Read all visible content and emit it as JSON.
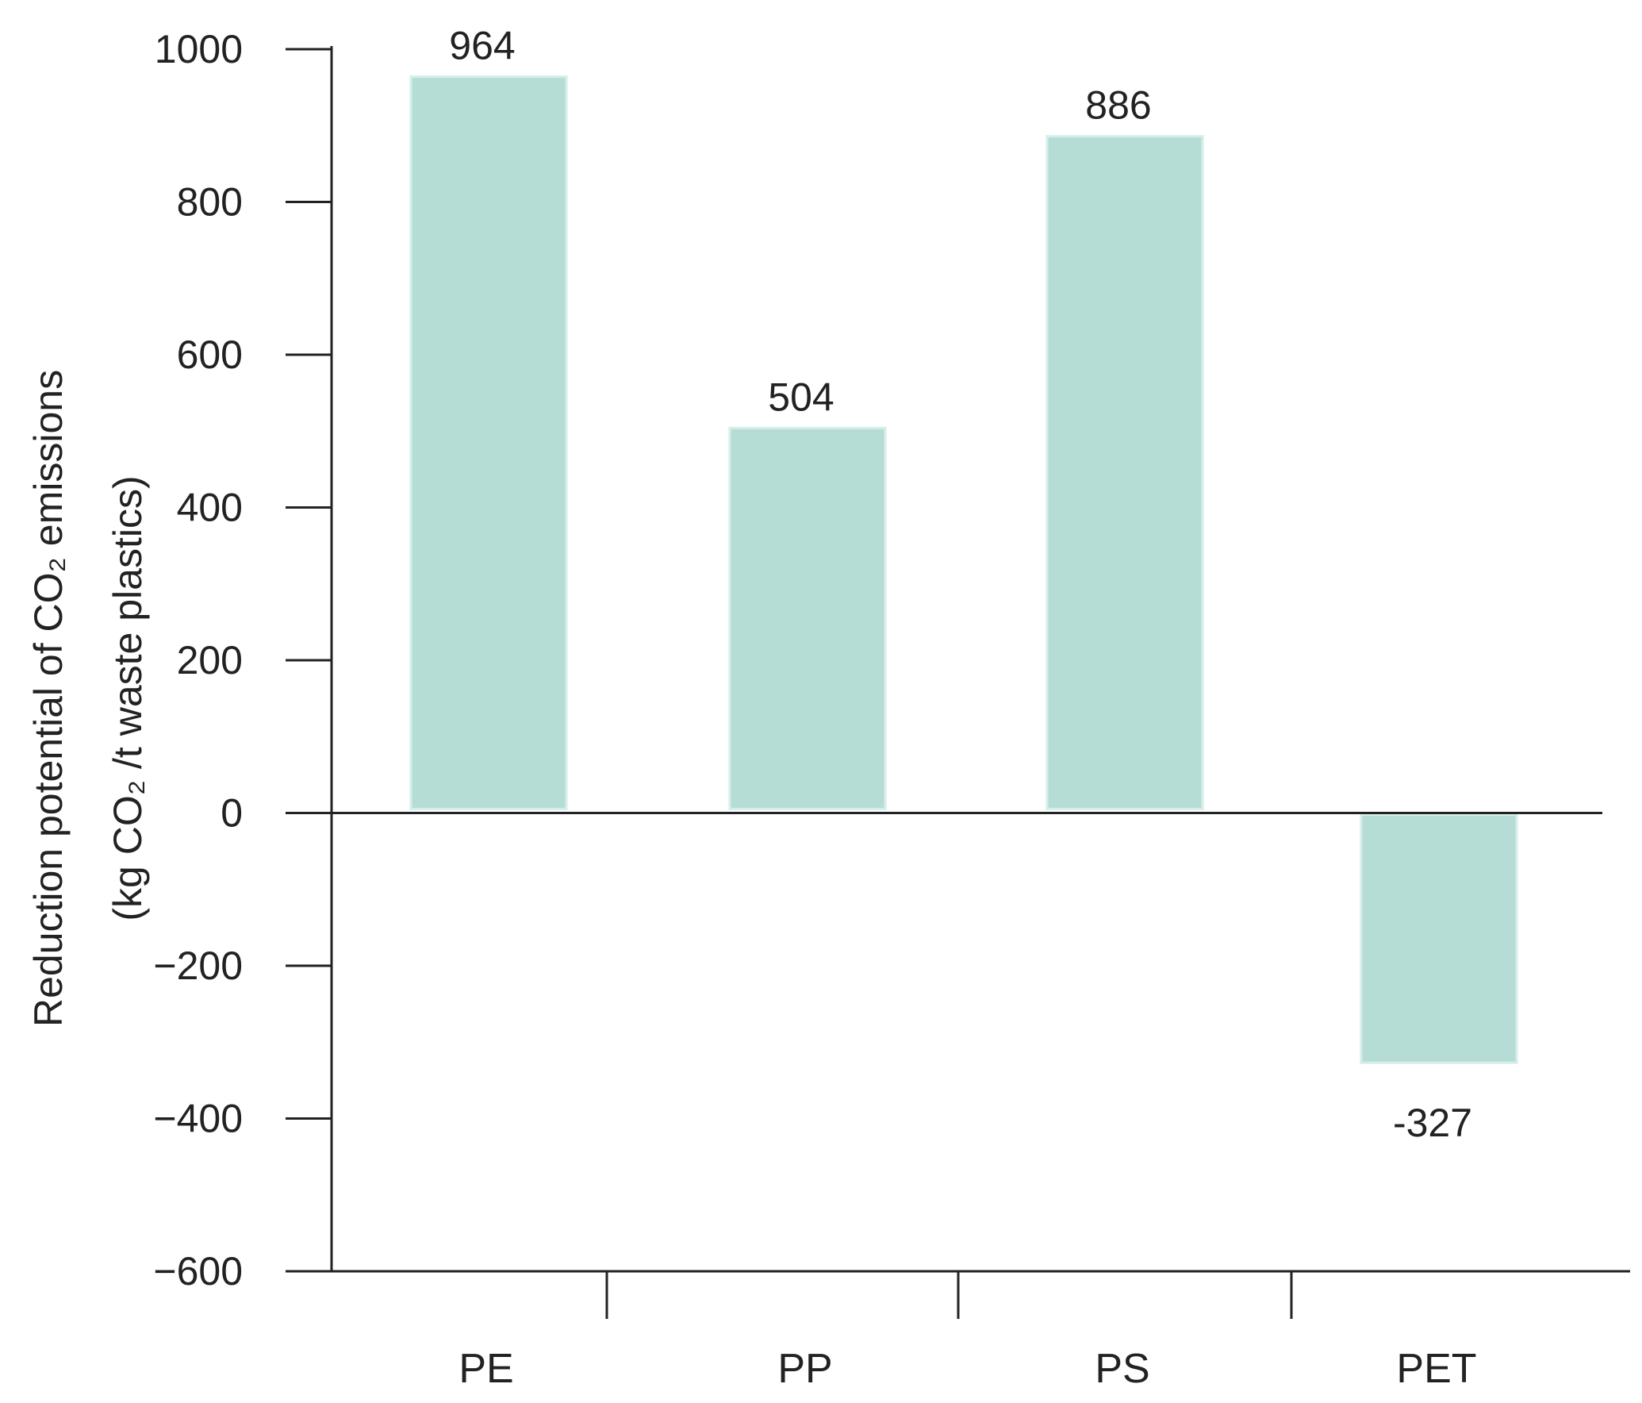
{
  "chart_data": {
    "type": "bar",
    "categories": [
      "PE",
      "PP",
      "PS",
      "PET"
    ],
    "values": [
      964,
      504,
      886,
      -327
    ],
    "data_labels": [
      "964",
      "504",
      "886",
      "-327"
    ],
    "ylim": [
      -600,
      1000
    ],
    "yticks": [
      1000,
      800,
      600,
      400,
      200,
      0,
      -200,
      -400,
      -600
    ],
    "ytick_labels": [
      "1000",
      "800",
      "600",
      "400",
      "200",
      "0",
      "−200",
      "−400",
      "−600"
    ],
    "ylabel": {
      "line1": "Reduction potential of CO₂ emissions",
      "line2": "(kg CO₂ /t waste plastics)"
    },
    "xlabel": "",
    "title": "",
    "grid": false,
    "legend": "none",
    "bar_color": "#b5ddd6",
    "bar_edge_color": "#d6eee9",
    "axis_color": "#222222"
  }
}
